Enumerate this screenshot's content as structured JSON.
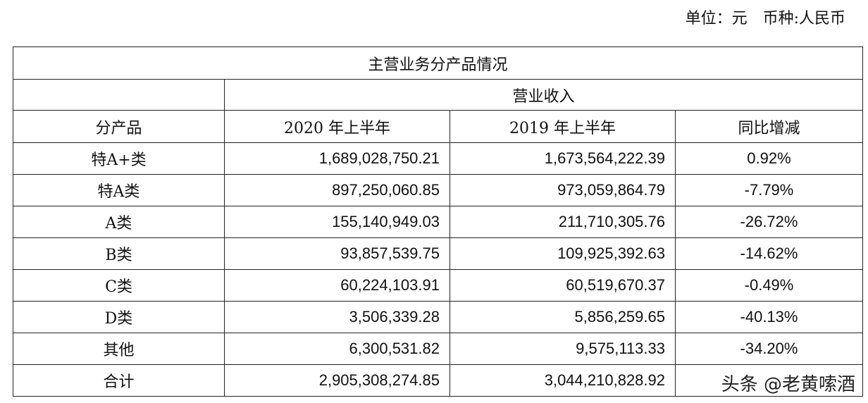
{
  "unit_note": "单位：元　币种:人民币",
  "table": {
    "title": "主营业务分产品情况",
    "group_header": "营业收入",
    "columns": [
      "分产品",
      "2020 年上半年",
      "2019 年上半年",
      "同比增减"
    ],
    "rows": [
      [
        "特A+类",
        "1,689,028,750.21",
        "1,673,564,222.39",
        "0.92%"
      ],
      [
        "特A类",
        "897,250,060.85",
        "973,059,864.79",
        "-7.79%"
      ],
      [
        "A类",
        "155,140,949.03",
        "211,710,305.76",
        "-26.72%"
      ],
      [
        "B类",
        "93,857,539.75",
        "109,925,392.63",
        "-14.62%"
      ],
      [
        "C类",
        "60,224,103.91",
        "60,519,670.37",
        "-0.49%"
      ],
      [
        "D类",
        "3,506,339.28",
        "5,856,259.65",
        "-40.13%"
      ],
      [
        "其他",
        "6,300,531.82",
        "9,575,113.33",
        "-34.20%"
      ],
      [
        "合计",
        "2,905,308,274.85",
        "3,044,210,828.92",
        ""
      ]
    ]
  },
  "watermark": "头条 @老黄嗦酒"
}
